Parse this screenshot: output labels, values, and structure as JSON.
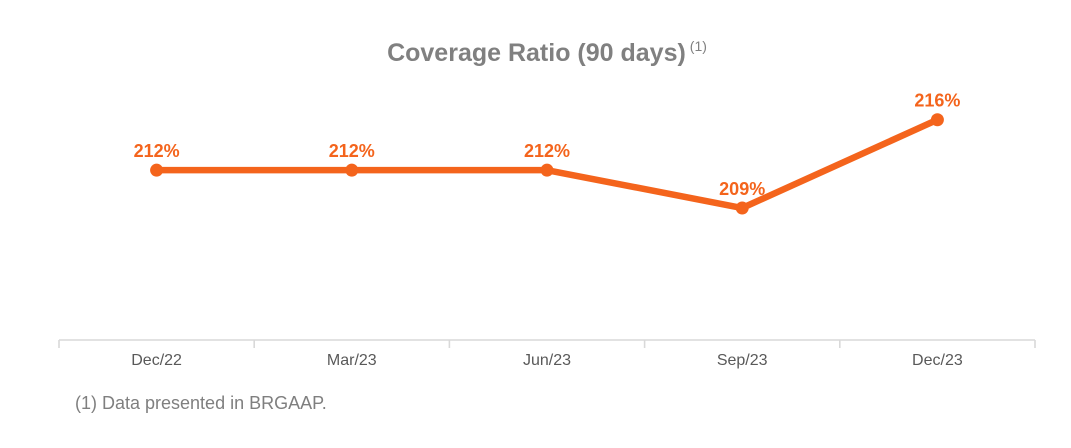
{
  "title": {
    "text": "Coverage Ratio (90 days)",
    "marker": "(1)"
  },
  "footnote": {
    "text": "(1) Data presented in BRGAAP."
  },
  "colors": {
    "accent": "#F4641C",
    "title": "#808080",
    "axis_line": "#D9D9D9",
    "axis_label": "#595959",
    "footnote": "#7F7F7F",
    "background": "#FFFFFF"
  },
  "chart_data": {
    "type": "line",
    "title": "Coverage Ratio (90 days) (1)",
    "categories": [
      "Dec/22",
      "Mar/23",
      "Jun/23",
      "Sep/23",
      "Dec/23"
    ],
    "series": [
      {
        "name": "Coverage Ratio (90 days)",
        "values": [
          212,
          212,
          212,
          209,
          216
        ]
      }
    ],
    "unit": "%",
    "data_labels": [
      "212%",
      "212%",
      "212%",
      "209%",
      "216%"
    ],
    "xlabel": "",
    "ylabel": "",
    "ylim": [
      200,
      222
    ],
    "y_axis_visible": false,
    "gridlines": false,
    "legend": "none"
  }
}
